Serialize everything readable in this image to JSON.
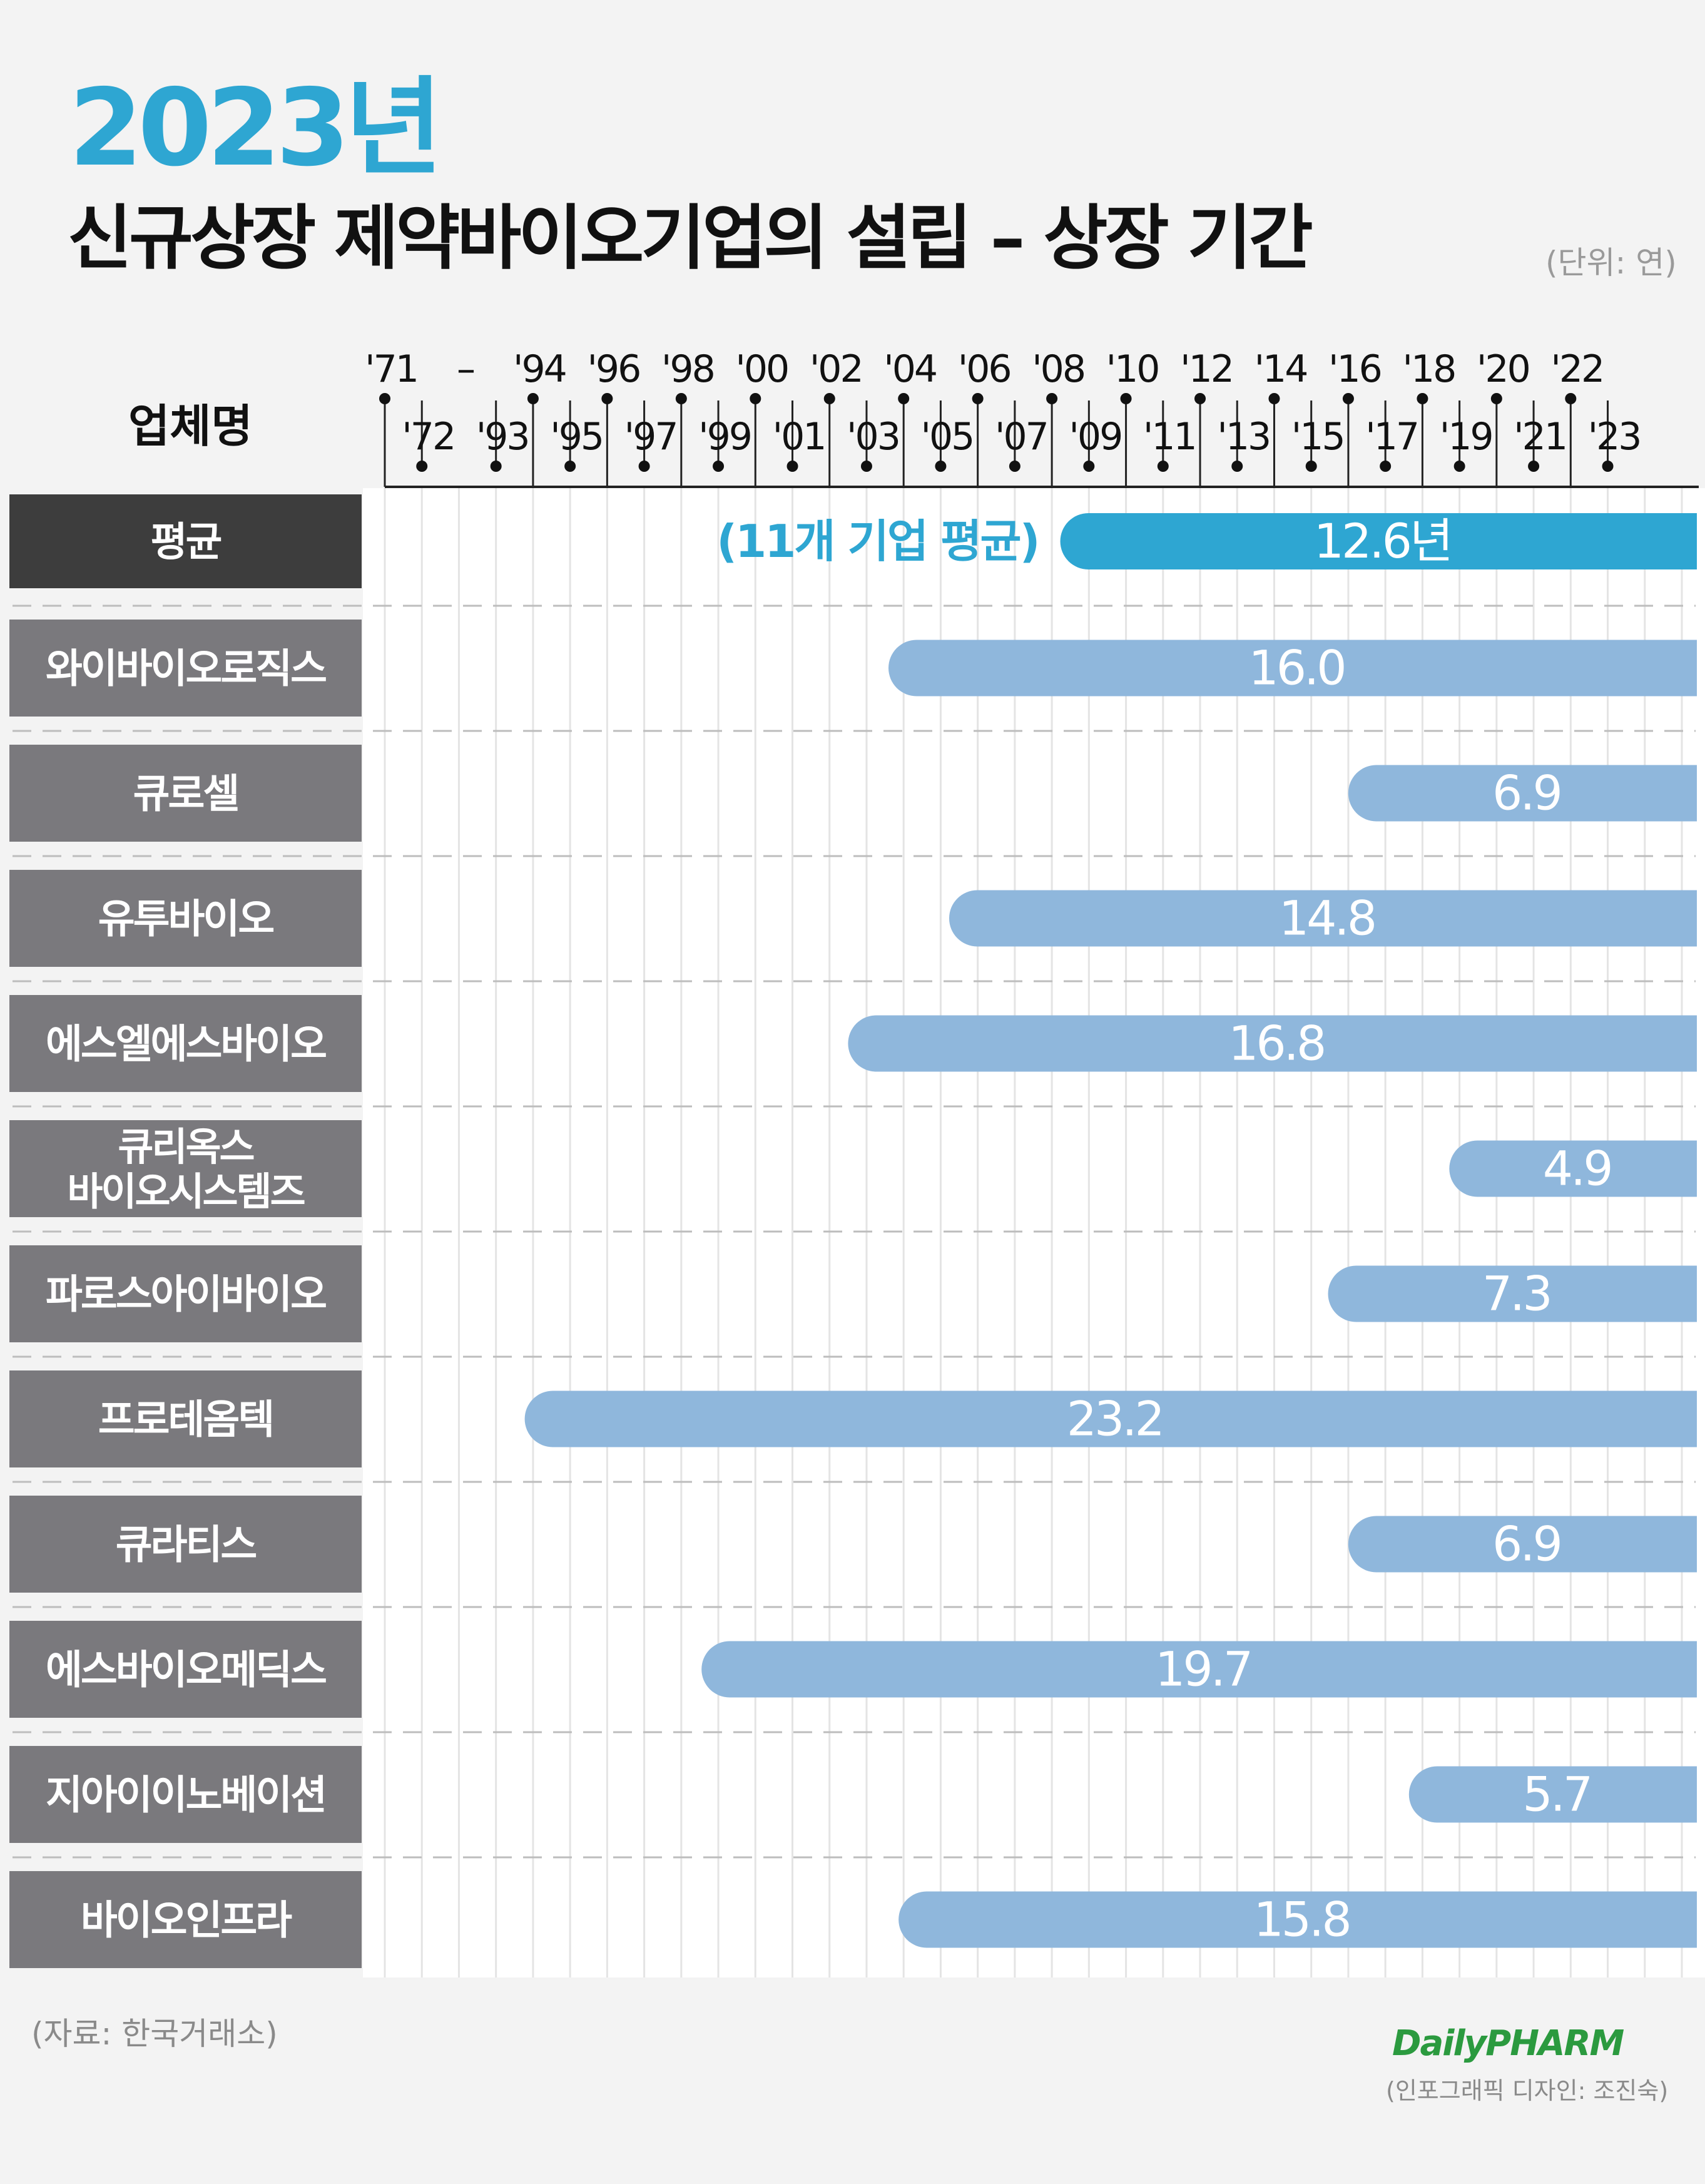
{
  "title": {
    "year": "2023년",
    "main": "신규상장 제약바이오기업의 설립 – 상장 기간",
    "unit": "(단위: 연)"
  },
  "axis_header": "업체명",
  "source": "(자료: 한국거래소)",
  "logo": "DailyPHARM",
  "designer": "(인포그래픽 디자인: 조진숙)",
  "colors": {
    "average_bar": "#2ea6d2",
    "company_bar": "#8fb7dc",
    "average_label_bg": "#3d3d3d",
    "company_label_bg": "#7a797d",
    "average_note": "#2ea6d2"
  },
  "chart_data": {
    "type": "bar",
    "orientation": "horizontal",
    "x_axis_ticks_top": [
      "'71",
      "–",
      "'94",
      "'96",
      "'98",
      "'00",
      "'02",
      "'04",
      "'06",
      "'08",
      "'10",
      "'12",
      "'14",
      "'16",
      "'18",
      "'20",
      "'22"
    ],
    "x_axis_ticks_bottom": [
      "'72",
      "'93",
      "'95",
      "'97",
      "'99",
      "'01",
      "'03",
      "'05",
      "'07",
      "'09",
      "'11",
      "'13",
      "'15",
      "'17",
      "'19",
      "'21",
      "'23"
    ],
    "average": {
      "label": "평균",
      "note": "(11개 기업 평균)",
      "value": 12.6,
      "value_label": "12.6년"
    },
    "categories": [
      "와이바이오로직스",
      "큐로셀",
      "유투바이오",
      "에스엘에스바이오",
      "큐리옥스\n바이오시스템즈",
      "파로스아이바이오",
      "프로테옴텍",
      "큐라티스",
      "에스바이오메딕스",
      "지아이이노베이션",
      "바이오인프라"
    ],
    "series": [
      {
        "values": [
          16.0,
          6.9,
          14.8,
          16.8,
          4.9,
          7.3,
          23.2,
          6.9,
          19.7,
          5.7,
          15.8
        ],
        "value_labels": [
          "16.0",
          "6.9",
          "14.8",
          "16.8",
          "4.9",
          "7.3",
          "23.2",
          "6.9",
          "19.7",
          "5.7",
          "15.8"
        ]
      }
    ],
    "grid": true
  }
}
